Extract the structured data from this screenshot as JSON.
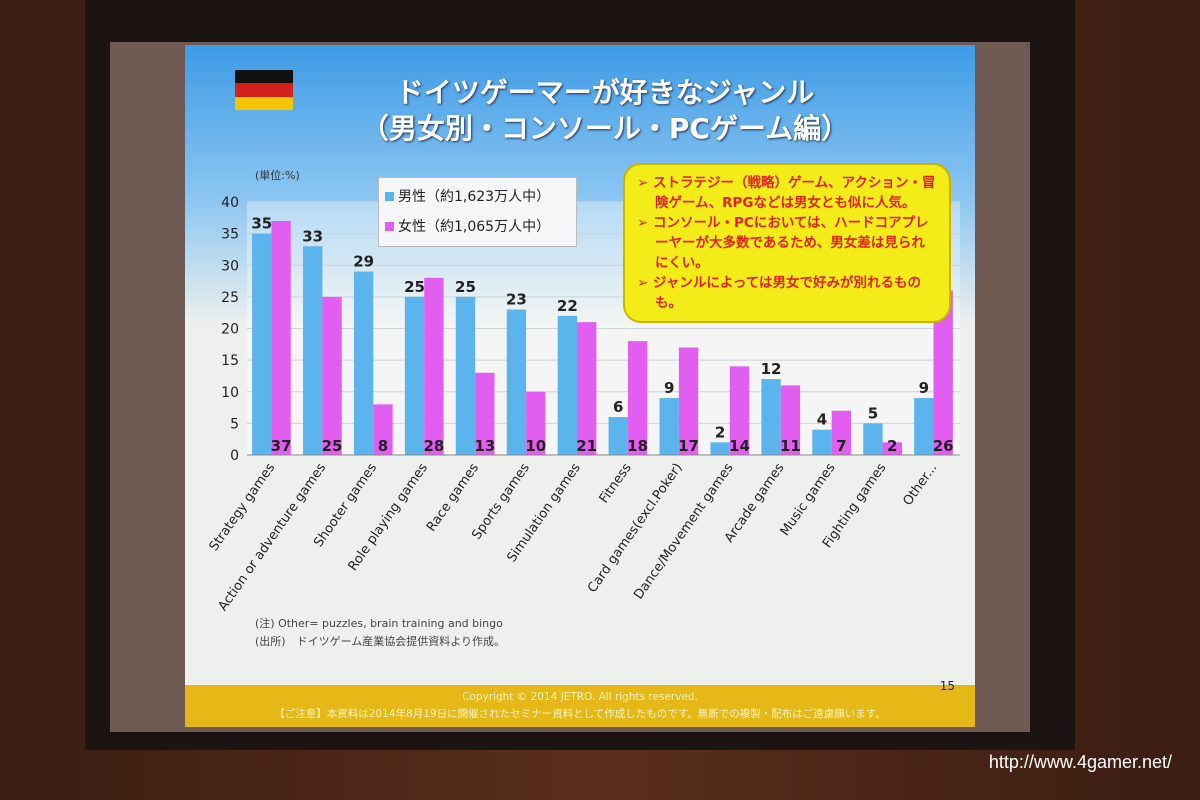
{
  "slide": {
    "title_line1": "ドイツゲーマーが好きなジャンル",
    "title_line2": "（男女別・コンソール・PCゲーム編）",
    "unit": "(単位:%)",
    "notes": [
      "➢ ストラテジー（戦略）ゲーム、アクション・冒険ゲーム、RPGなどは男女とも似に人気。",
      "➢ コンソール・PCにおいては、ハードコアプレーヤーが大多数であるため、男女差は見られにくい。",
      "➢ ジャンルによっては男女で好みが別れるものも。"
    ],
    "footnote_other": "(注) Other= puzzles, brain training and bingo",
    "footnote_source": "(出所)　ドイツゲーム産業協会提供資料より作成。",
    "copyright": "Copyright © 2014 JETRO. All rights reserved.",
    "disclaimer": "【ご注意】本資料は2014年8月19日に開催されたセミナー資料として作成したものです。無断での複製・配布はご遠慮願います。",
    "page_number": "15"
  },
  "watermark": "http://www.4gamer.net/",
  "colors": {
    "male": "#5bb4ec",
    "female": "#e25ef0"
  },
  "chart_data": {
    "type": "bar",
    "title": "ドイツゲーマーが好きなジャンル（男女別・コンソール・PCゲーム編）",
    "ylabel": "(単位:%)",
    "ylim": [
      0,
      40
    ],
    "yticks": [
      0,
      5,
      10,
      15,
      20,
      25,
      30,
      35,
      40
    ],
    "categories": [
      "Strategy games",
      "Action or adventure games",
      "Shooter games",
      "Role playing games",
      "Race games",
      "Sports games",
      "Simulation games",
      "Fitness",
      "Card games(excl.Poker)",
      "Dance/Movement games",
      "Arcade games",
      "Music games",
      "Fighting games",
      "Other..."
    ],
    "series": [
      {
        "name": "男性（約1,623万人中）",
        "values": [
          35,
          33,
          29,
          25,
          25,
          23,
          22,
          6,
          9,
          2,
          12,
          4,
          5,
          9
        ]
      },
      {
        "name": "女性（約1,065万人中）",
        "values": [
          37,
          25,
          8,
          28,
          13,
          10,
          21,
          18,
          17,
          14,
          11,
          7,
          2,
          26
        ]
      }
    ],
    "legend": "top-left"
  }
}
